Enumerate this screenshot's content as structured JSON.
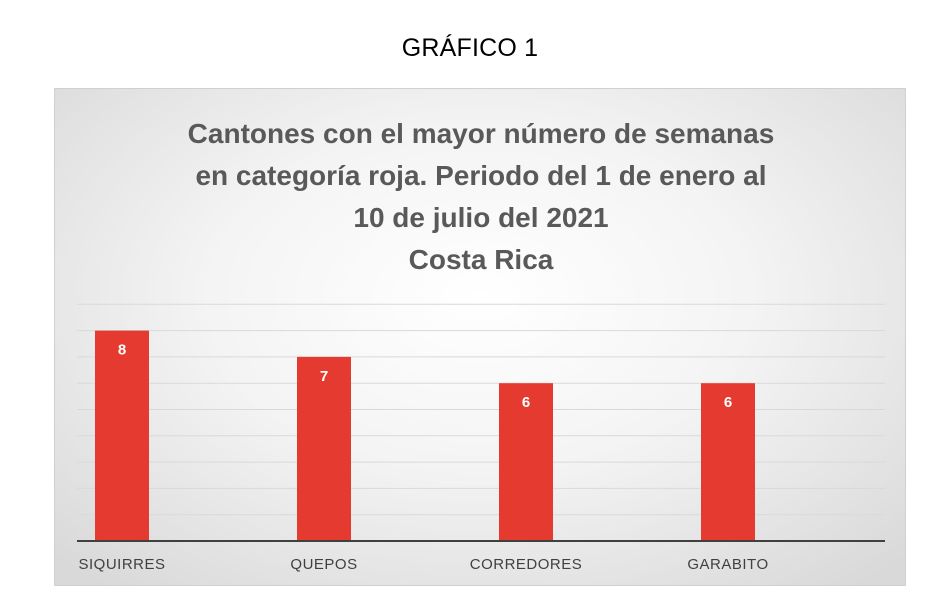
{
  "heading": "GRÁFICO 1",
  "chart_data": {
    "type": "bar",
    "title_lines": [
      "Cantones con el mayor número de semanas",
      "en categoría roja. Periodo del 1 de enero al",
      "10 de julio del 2021",
      "Costa Rica"
    ],
    "categories": [
      "SIQUIRRES",
      "QUEPOS",
      "CORREDORES",
      "GARABITO"
    ],
    "values": [
      8,
      7,
      6,
      6
    ],
    "data_labels": [
      "8",
      "7",
      "6",
      "6"
    ],
    "ylim": [
      0,
      9
    ],
    "grid": true,
    "bar_color": "#E53A2F",
    "gridline_color": "#D9D9D9",
    "axis_color": "#404040",
    "title_color": "#595959",
    "tick_label_color": "#404040"
  }
}
